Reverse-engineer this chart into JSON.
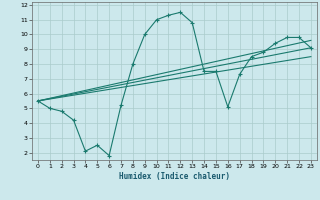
{
  "xlabel": "Humidex (Indice chaleur)",
  "bg_color": "#cce8ec",
  "grid_color": "#aacccc",
  "line_color": "#1a7a6e",
  "xlim": [
    -0.5,
    23.5
  ],
  "ylim": [
    1.5,
    12.2
  ],
  "xticks": [
    0,
    1,
    2,
    3,
    4,
    5,
    6,
    7,
    8,
    9,
    10,
    11,
    12,
    13,
    14,
    15,
    16,
    17,
    18,
    19,
    20,
    21,
    22,
    23
  ],
  "yticks": [
    2,
    3,
    4,
    5,
    6,
    7,
    8,
    9,
    10,
    11,
    12
  ],
  "line1_x": [
    0,
    1,
    2,
    3,
    4,
    5,
    6,
    7,
    8,
    9,
    10,
    11,
    12,
    13,
    14,
    15,
    16,
    17,
    18,
    19,
    20,
    21,
    22,
    23
  ],
  "line1_y": [
    5.5,
    5.0,
    4.8,
    4.2,
    2.1,
    2.5,
    1.8,
    5.2,
    8.0,
    10.0,
    11.0,
    11.3,
    11.5,
    10.8,
    7.5,
    7.5,
    5.1,
    7.3,
    8.5,
    8.8,
    9.4,
    9.8,
    9.8,
    9.1
  ],
  "trend1_x": [
    0,
    23
  ],
  "trend1_y": [
    5.5,
    9.1
  ],
  "trend2_x": [
    0,
    23
  ],
  "trend2_y": [
    5.5,
    8.5
  ],
  "trend3_x": [
    0,
    23
  ],
  "trend3_y": [
    5.5,
    9.6
  ]
}
